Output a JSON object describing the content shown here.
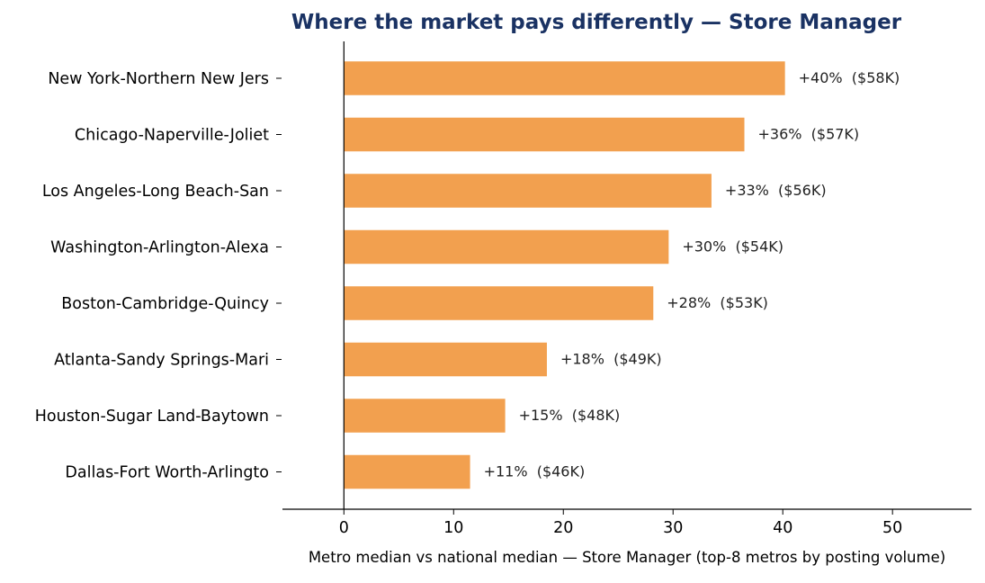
{
  "chart_data": {
    "type": "bar",
    "orientation": "horizontal",
    "title": "Where the market pays differently — Store Manager",
    "xlabel": "Metro median vs national median — Store Manager (top-8 metros by posting volume)",
    "ylabel": "",
    "categories": [
      "New York-Northern New Jers",
      "Chicago-Naperville-Joliet",
      "Los Angeles-Long Beach-San",
      "Washington-Arlington-Alexa",
      "Boston-Cambridge-Quincy",
      "Atlanta-Sandy Springs-Mari",
      "Houston-Sugar Land-Baytown",
      "Dallas-Fort Worth-Arlingto"
    ],
    "values": [
      40.2,
      36.5,
      33.5,
      29.6,
      28.2,
      18.5,
      14.7,
      11.5
    ],
    "data_labels": [
      "+40%  ($58K)",
      "+36%  ($57K)",
      "+33%  ($56K)",
      "+30%  ($54K)",
      "+28%  ($53K)",
      "+18%  ($49K)",
      "+15%  ($48K)",
      "+11%  ($46K)"
    ],
    "xlim": [
      -5.6,
      57.2
    ],
    "xticks": [
      0,
      10,
      20,
      30,
      40,
      50
    ],
    "grid": false,
    "bar_color": "#f2a04f",
    "title_color": "#1a3263"
  }
}
